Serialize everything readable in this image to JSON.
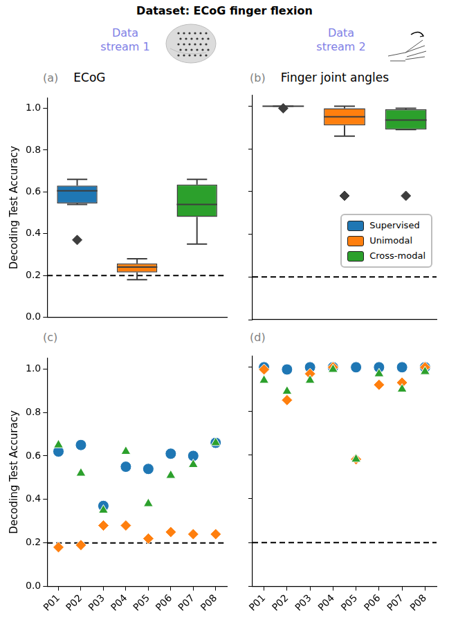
{
  "figure": {
    "title": "Dataset: ECoG finger flexion",
    "streams": [
      "Data stream 1",
      "Data stream 2"
    ]
  },
  "chart_data": [
    {
      "type": "box",
      "panel": "(a)",
      "title": "ECoG",
      "y_label": "Decoding Test Accuracy",
      "ylim": [
        0,
        1.05
      ],
      "yticks": [
        {
          "value": 0,
          "label": "0.0"
        },
        0.2,
        0.4,
        0.6,
        0.8,
        {
          "value": 1,
          "label": "1.0"
        }
      ],
      "tick_labels": "y",
      "reference_y": 0.2,
      "series": [
        {
          "name": "Supervised",
          "color": "#1f77b4",
          "min": 0.54,
          "q1": 0.545,
          "median": 0.605,
          "q3": 0.63,
          "max": 0.66,
          "outliers": [
            0.37
          ]
        },
        {
          "name": "Unimodal",
          "color": "#ff7f0e",
          "min": 0.18,
          "q1": 0.215,
          "median": 0.24,
          "q3": 0.258,
          "max": 0.28,
          "outliers": []
        },
        {
          "name": "Cross-modal",
          "color": "#2ca02c",
          "min": 0.35,
          "q1": 0.48,
          "median": 0.54,
          "q3": 0.635,
          "max": 0.66,
          "outliers": []
        }
      ]
    },
    {
      "type": "box",
      "panel": "(b)",
      "title": "Finger joint angles",
      "ylim": [
        0,
        1.05
      ],
      "yticks": [
        {
          "value": 0,
          "label": "0.0"
        },
        0.2,
        0.4,
        0.6,
        0.8,
        {
          "value": 1,
          "label": "1.0"
        }
      ],
      "tick_labels": false,
      "reference_y": 0.2,
      "legend": "lower right",
      "series": [
        {
          "name": "Supervised",
          "color": "#1f77b4",
          "min": 1.0,
          "q1": 1.0,
          "median": 1.0,
          "q3": 1.0,
          "max": 1.0,
          "outliers": [
            0.99
          ]
        },
        {
          "name": "Unimodal",
          "color": "#ff7f0e",
          "min": 0.86,
          "q1": 0.91,
          "median": 0.95,
          "q3": 0.99,
          "max": 1.0,
          "outliers": [
            0.58
          ]
        },
        {
          "name": "Cross-modal",
          "color": "#2ca02c",
          "min": 0.89,
          "q1": 0.89,
          "median": 0.935,
          "q3": 0.985,
          "max": 0.99,
          "outliers": [
            0.58
          ]
        }
      ]
    },
    {
      "type": "scatter",
      "panel": "(c)",
      "y_label": "Decoding Test Accuracy",
      "categories": [
        "P01",
        "P02",
        "P03",
        "P04",
        "P05",
        "P06",
        "P07",
        "P08"
      ],
      "ylim": [
        0,
        1.05
      ],
      "yticks": [
        {
          "value": 0,
          "label": "0.0"
        },
        0.2,
        0.4,
        0.6,
        0.8,
        {
          "value": 1,
          "label": "1.0"
        }
      ],
      "tick_labels": true,
      "reference_y": 0.2,
      "series": [
        {
          "name": "Supervised",
          "color": "#1f77b4",
          "marker": "circle",
          "values": [
            0.62,
            0.65,
            0.37,
            0.55,
            0.54,
            0.61,
            0.6,
            0.66
          ]
        },
        {
          "name": "Unimodal",
          "color": "#ff7f0e",
          "marker": "diamond",
          "values": [
            0.18,
            0.19,
            0.28,
            0.28,
            0.22,
            0.25,
            0.24,
            0.24
          ]
        },
        {
          "name": "Cross-modal",
          "color": "#2ca02c",
          "marker": "triangle",
          "values": [
            0.65,
            0.52,
            0.35,
            0.62,
            0.38,
            0.51,
            0.56,
            0.66
          ]
        }
      ]
    },
    {
      "type": "scatter",
      "panel": "(d)",
      "categories": [
        "P01",
        "P02",
        "P03",
        "P04",
        "P05",
        "P06",
        "P07",
        "P08"
      ],
      "ylim": [
        0,
        1.05
      ],
      "yticks": [
        {
          "value": 0,
          "label": "0.0"
        },
        0.2,
        0.4,
        0.6,
        0.8,
        {
          "value": 1,
          "label": "1.0"
        }
      ],
      "tick_labels": "x",
      "reference_y": 0.2,
      "series": [
        {
          "name": "Supervised",
          "color": "#1f77b4",
          "marker": "circle",
          "values": [
            1.0,
            0.99,
            1.0,
            1.0,
            1.0,
            1.0,
            1.0,
            1.0
          ]
        },
        {
          "name": "Unimodal",
          "color": "#ff7f0e",
          "marker": "diamond",
          "values": [
            0.99,
            0.85,
            0.97,
            1.0,
            0.58,
            0.92,
            0.93,
            1.0
          ]
        },
        {
          "name": "Cross-modal",
          "color": "#2ca02c",
          "marker": "triangle",
          "values": [
            0.94,
            0.89,
            0.94,
            0.99,
            0.58,
            0.97,
            0.9,
            0.98
          ]
        }
      ]
    }
  ]
}
